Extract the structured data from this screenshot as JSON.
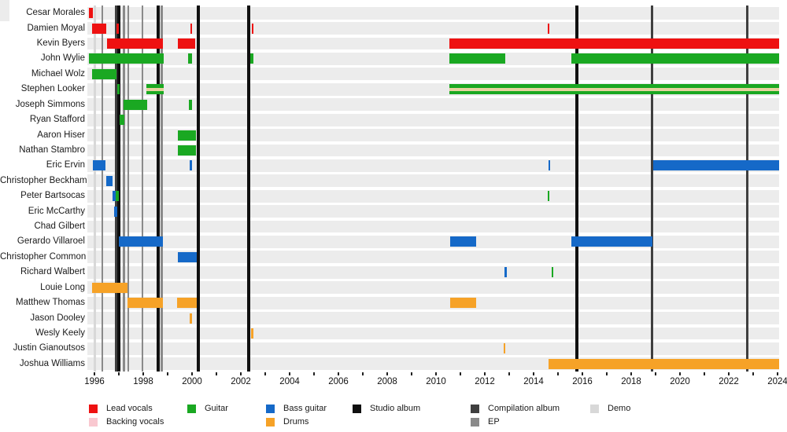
{
  "chart_data": {
    "type": "timeline-gantt",
    "title": "",
    "axis": {
      "start_year": 1996,
      "end_year": 2024,
      "tick_step": 1,
      "label_step": 2,
      "tick_labels": [
        "1996",
        "1998",
        "2000",
        "2002",
        "2004",
        "2006",
        "2008",
        "2010",
        "2012",
        "2014",
        "2016",
        "2018",
        "2020",
        "2022",
        "2024"
      ]
    },
    "colors": {
      "lead": "#ee1111",
      "backing": "#f9c8d0",
      "guitar": "#1aa822",
      "bass": "#1569c8",
      "drums": "#f6a227",
      "tan_stripe": "#e7d4a0",
      "studio": "#101010",
      "compilation": "#3f3f3f",
      "ep": "#8a8a8a",
      "demo": "#d8d8d8"
    },
    "members": [
      {
        "name": "Cesar Morales",
        "segments": [
          {
            "role": "lead",
            "from": 1995.77,
            "to": 1995.92
          }
        ]
      },
      {
        "name": "Damien Moyal",
        "segments": [
          {
            "role": "lead",
            "from": 1995.9,
            "to": 1996.48
          },
          {
            "role": "lead",
            "from": 1996.91,
            "to": 1996.99
          },
          {
            "role": "lead",
            "from": 1999.93,
            "to": 2000.01
          },
          {
            "role": "lead",
            "from": 2002.45,
            "to": 2002.53
          },
          {
            "role": "lead",
            "from": 2014.58,
            "to": 2014.66
          }
        ]
      },
      {
        "name": "Kevin Byers",
        "segments": [
          {
            "role": "lead",
            "from": 1996.51,
            "to": 1998.8
          },
          {
            "role": "lead",
            "from": 1999.42,
            "to": 2000.14
          },
          {
            "role": "lead",
            "from": 2010.54,
            "to": 2024.06
          }
        ]
      },
      {
        "name": "John Wylie",
        "segments": [
          {
            "role": "guitar",
            "from": 1995.78,
            "to": 1998.84
          },
          {
            "role": "guitar",
            "from": 1999.84,
            "to": 1999.99
          },
          {
            "role": "guitar",
            "from": 2002.4,
            "to": 2002.51
          },
          {
            "role": "guitar",
            "from": 2010.55,
            "to": 2012.84
          },
          {
            "role": "guitar",
            "from": 2015.55,
            "to": 2024.06
          }
        ]
      },
      {
        "name": "Michael Wolz",
        "segments": [
          {
            "role": "guitar",
            "from": 1995.9,
            "to": 1996.9
          }
        ]
      },
      {
        "name": "Stephen Looker",
        "segments": [
          {
            "role": "guitar",
            "from": 1996.94,
            "to": 1997.03
          },
          {
            "role": "guitar_tan",
            "from": 1998.13,
            "to": 1998.84
          },
          {
            "role": "guitar_tan",
            "from": 2010.55,
            "to": 2024.06
          }
        ]
      },
      {
        "name": "Joseph Simmons",
        "segments": [
          {
            "role": "guitar",
            "from": 1997.18,
            "to": 1998.15
          },
          {
            "role": "guitar",
            "from": 1999.87,
            "to": 2000.0
          }
        ]
      },
      {
        "name": "Ryan Stafford",
        "segments": [
          {
            "role": "guitar",
            "from": 1997.02,
            "to": 1997.24
          }
        ]
      },
      {
        "name": "Aaron Hiser",
        "segments": [
          {
            "role": "guitar",
            "from": 1999.42,
            "to": 2000.16
          }
        ]
      },
      {
        "name": "Nathan Stambro",
        "segments": [
          {
            "role": "guitar",
            "from": 1999.42,
            "to": 2000.16
          }
        ]
      },
      {
        "name": "Eric Ervin",
        "segments": [
          {
            "role": "bass",
            "from": 1995.94,
            "to": 1996.45
          },
          {
            "role": "bass",
            "from": 1999.9,
            "to": 2000.0
          },
          {
            "role": "bass",
            "from": 2014.61,
            "to": 2014.68
          },
          {
            "role": "bass",
            "from": 2018.9,
            "to": 2024.06
          }
        ]
      },
      {
        "name": "Christopher Beckham",
        "segments": [
          {
            "role": "bass",
            "from": 1996.48,
            "to": 1996.74
          }
        ]
      },
      {
        "name": "Peter Bartsocas",
        "segments": [
          {
            "role": "bass",
            "from": 1996.73,
            "to": 1996.86
          },
          {
            "role": "guitar",
            "from": 1996.87,
            "to": 1996.99
          },
          {
            "role": "guitar",
            "from": 2014.58,
            "to": 2014.65
          }
        ]
      },
      {
        "name": "Eric McCarthy",
        "segments": [
          {
            "role": "bass",
            "from": 1996.81,
            "to": 1996.94
          }
        ]
      },
      {
        "name": "Chad Gilbert",
        "segments": []
      },
      {
        "name": "Gerardo Villaroel",
        "segments": [
          {
            "role": "bass",
            "from": 1997.0,
            "to": 1998.81
          },
          {
            "role": "bass",
            "from": 2010.57,
            "to": 2011.65
          },
          {
            "role": "bass",
            "from": 2015.55,
            "to": 2018.87
          }
        ]
      },
      {
        "name": "Christopher Common",
        "segments": [
          {
            "role": "bass",
            "from": 1999.42,
            "to": 2000.19
          }
        ]
      },
      {
        "name": "Richard Walbert",
        "segments": [
          {
            "role": "bass",
            "from": 2012.81,
            "to": 2012.88
          },
          {
            "role": "guitar",
            "from": 2014.74,
            "to": 2014.81
          }
        ]
      },
      {
        "name": "Louie Long",
        "segments": [
          {
            "role": "drums",
            "from": 1995.9,
            "to": 1997.35
          }
        ]
      },
      {
        "name": "Matthew Thomas",
        "segments": [
          {
            "role": "drums",
            "from": 1997.35,
            "to": 1998.81
          },
          {
            "role": "drums",
            "from": 1999.39,
            "to": 2000.19
          },
          {
            "role": "drums",
            "from": 2010.57,
            "to": 2011.65
          }
        ]
      },
      {
        "name": "Jason Dooley",
        "segments": [
          {
            "role": "drums",
            "from": 1999.9,
            "to": 2000.01
          }
        ]
      },
      {
        "name": "Wesly Keely",
        "segments": [
          {
            "role": "drums",
            "from": 2002.42,
            "to": 2002.49
          }
        ]
      },
      {
        "name": "Justin Gianoutsos",
        "segments": [
          {
            "role": "drums",
            "from": 2012.77,
            "to": 2012.84
          }
        ]
      },
      {
        "name": "Joshua Williams",
        "segments": [
          {
            "role": "drums",
            "from": 2014.61,
            "to": 2024.06
          }
        ]
      }
    ],
    "releases": [
      {
        "year": 1996.016,
        "type": "demo"
      },
      {
        "year": 1996.323,
        "type": "ep"
      },
      {
        "year": 1996.887,
        "type": "compilation"
      },
      {
        "year": 1997.016,
        "type": "studio"
      },
      {
        "year": 1997.21,
        "type": "ep"
      },
      {
        "year": 1997.387,
        "type": "ep"
      },
      {
        "year": 1997.968,
        "type": "ep"
      },
      {
        "year": 1998.597,
        "type": "studio"
      },
      {
        "year": 1998.758,
        "type": "ep"
      },
      {
        "year": 2000.242,
        "type": "studio"
      },
      {
        "year": 2002.323,
        "type": "studio"
      },
      {
        "year": 2015.774,
        "type": "studio"
      },
      {
        "year": 2018.839,
        "type": "compilation"
      },
      {
        "year": 2022.742,
        "type": "compilation"
      }
    ],
    "legend": {
      "items": [
        {
          "label": "Lead vocals",
          "color": "lead",
          "col": 0,
          "row": 0
        },
        {
          "label": "Backing vocals",
          "color": "backing",
          "col": 0,
          "row": 1
        },
        {
          "label": "Guitar",
          "color": "guitar",
          "col": 1,
          "row": 0
        },
        {
          "label": "Bass guitar",
          "color": "bass",
          "col": 2,
          "row": 0
        },
        {
          "label": "Drums",
          "color": "drums",
          "col": 2,
          "row": 1
        },
        {
          "label": "Studio album",
          "color": "studio",
          "col": 3,
          "row": 0
        },
        {
          "label": "Compilation album",
          "color": "compilation",
          "col": 4,
          "row": 0
        },
        {
          "label": "EP",
          "color": "ep",
          "col": 4,
          "row": 1
        },
        {
          "label": "Demo",
          "color": "demo",
          "col": 5,
          "row": 0
        }
      ]
    }
  }
}
